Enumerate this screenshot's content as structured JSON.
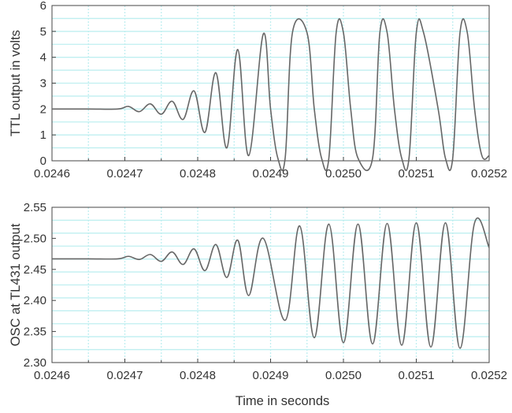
{
  "chart_data": [
    {
      "type": "line",
      "title": "",
      "xlabel": "",
      "ylabel": "TTL output in volts",
      "xlim": [
        0.0246,
        0.0252
      ],
      "ylim": [
        0,
        6
      ],
      "x_ticks": [
        "0.0246",
        "0.0247",
        "0.0248",
        "0.0249",
        "0.0250",
        "0.0251",
        "0.0252"
      ],
      "y_ticks": [
        "0",
        "1",
        "2",
        "3",
        "4",
        "5",
        "6"
      ],
      "grid": true,
      "series": [
        {
          "x": [
            0.0246,
            0.02465,
            0.02469,
            0.024705,
            0.02472,
            0.024735,
            0.02475,
            0.024765,
            0.02478,
            0.024795,
            0.02481,
            0.024825,
            0.02484,
            0.024855,
            0.02487,
            0.02489,
            0.0249,
            0.02491,
            0.02492,
            0.02493,
            0.02495,
            0.02496,
            0.02497,
            0.02498,
            0.02499,
            0.025,
            0.02501,
            0.02502,
            0.02504,
            0.02505,
            0.02506,
            0.02507,
            0.02508,
            0.02509,
            0.0251,
            0.02511,
            0.02513,
            0.02514,
            0.02515,
            0.02516,
            0.02517,
            0.02518,
            0.02519,
            0.0252
          ],
          "y": [
            2.0,
            2.0,
            2.0,
            2.1,
            1.9,
            2.2,
            1.8,
            2.3,
            1.6,
            2.7,
            1.1,
            3.4,
            0.5,
            4.3,
            0.2,
            4.9,
            2.0,
            0.1,
            0.1,
            4.95,
            4.95,
            2.0,
            0.1,
            0.1,
            4.95,
            4.95,
            2.0,
            0.1,
            0.1,
            4.95,
            4.95,
            2.0,
            0.1,
            0.1,
            4.95,
            4.95,
            2.0,
            0.1,
            0.1,
            4.95,
            4.95,
            2.0,
            0.2,
            0.2
          ]
        }
      ]
    },
    {
      "type": "line",
      "title": "",
      "xlabel": "Time in seconds",
      "ylabel": "OSC at TL431 output",
      "xlim": [
        0.0246,
        0.0252
      ],
      "ylim": [
        2.3,
        2.55
      ],
      "x_ticks": [
        "0.0246",
        "0.0247",
        "0.0248",
        "0.0249",
        "0.0250",
        "0.0251",
        "0.0252"
      ],
      "y_ticks": [
        "2.30",
        "2.35",
        "2.40",
        "2.45",
        "2.50",
        "2.55"
      ],
      "grid": true,
      "series": [
        {
          "x": [
            0.0246,
            0.02465,
            0.02469,
            0.024705,
            0.02472,
            0.024735,
            0.02475,
            0.024765,
            0.02478,
            0.024795,
            0.02481,
            0.024825,
            0.02484,
            0.024855,
            0.02487,
            0.02489,
            0.02492,
            0.02494,
            0.02496,
            0.02498,
            0.025,
            0.02502,
            0.02504,
            0.02506,
            0.02508,
            0.0251,
            0.02512,
            0.02514,
            0.02516,
            0.02518,
            0.0252
          ],
          "y": [
            2.467,
            2.467,
            2.467,
            2.471,
            2.466,
            2.474,
            2.463,
            2.478,
            2.458,
            2.483,
            2.448,
            2.49,
            2.437,
            2.497,
            2.408,
            2.5,
            2.368,
            2.52,
            2.34,
            2.523,
            2.332,
            2.523,
            2.33,
            2.524,
            2.328,
            2.525,
            2.325,
            2.525,
            2.323,
            2.525,
            2.485
          ]
        }
      ]
    }
  ]
}
